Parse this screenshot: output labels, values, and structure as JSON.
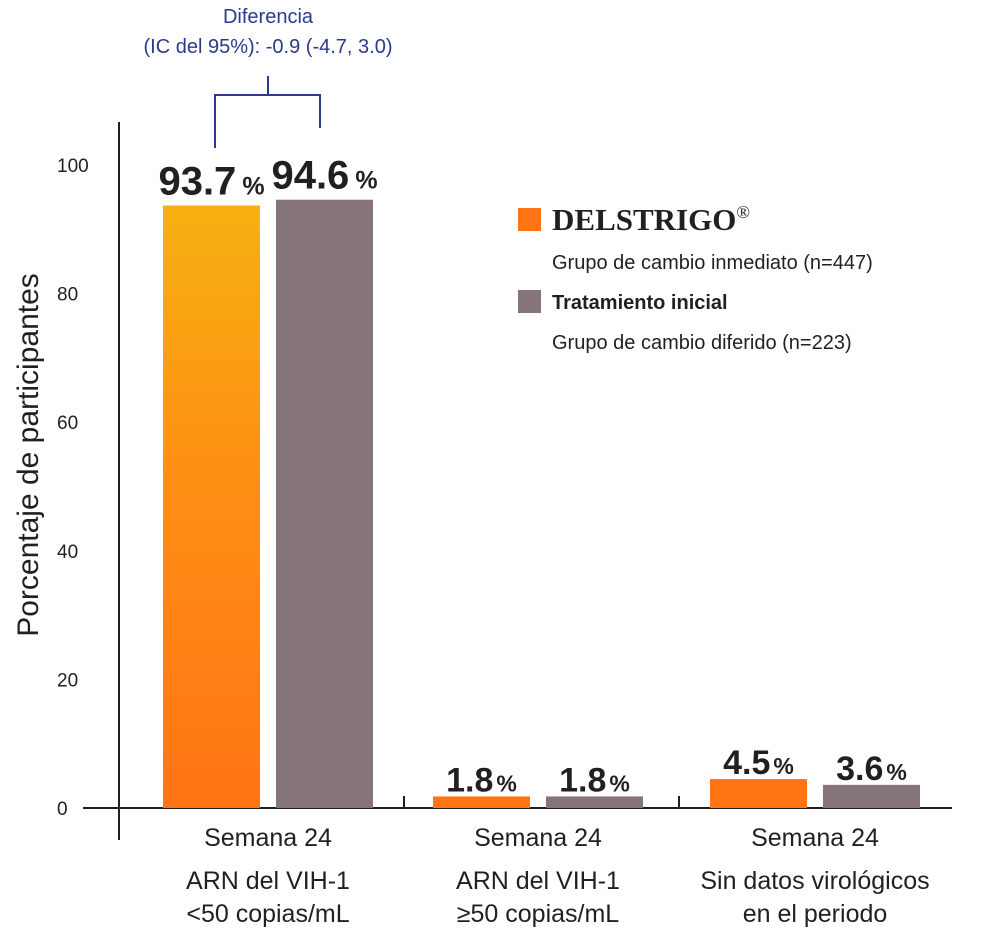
{
  "chart_data": {
    "type": "bar",
    "ylabel": "Porcentaje de participantes",
    "ylim": [
      0,
      100
    ],
    "yticks": [
      0,
      20,
      40,
      60,
      80,
      100
    ],
    "categories": [
      {
        "line1": "Semana 24",
        "line2": "ARN del VIH-1",
        "line3": "<50 copias/mL"
      },
      {
        "line1": "Semana 24",
        "line2": "ARN del VIH-1",
        "line3": "≥50 copias/mL"
      },
      {
        "line1": "Semana 24",
        "line2": "Sin datos virológicos",
        "line3": "en el periodo"
      }
    ],
    "series": [
      {
        "color": "#ff7415",
        "gradient_top": "#f5b011",
        "values": [
          93.7,
          1.8,
          4.5
        ],
        "labels": [
          "93.7",
          "1.8",
          "4.5"
        ]
      },
      {
        "color": "#857479",
        "values": [
          94.6,
          1.8,
          3.6
        ],
        "labels": [
          "94.6",
          "1.8",
          "3.6"
        ]
      }
    ],
    "percent_sign": "%",
    "legend_placement": "top-right",
    "grid": false
  },
  "legend": {
    "brand": "DELSTRIGO",
    "registered": "®",
    "brand_sub": "Grupo de cambio inmediato (n=447)",
    "comparator": "Tratamiento inicial",
    "comparator_sub": "Grupo de cambio diferido (n=223)"
  },
  "annotation": {
    "line1": "Diferencia",
    "line2": "(IC del 95%): -0.9 (-4.7, 3.0)",
    "color": "#2b3a8f"
  }
}
